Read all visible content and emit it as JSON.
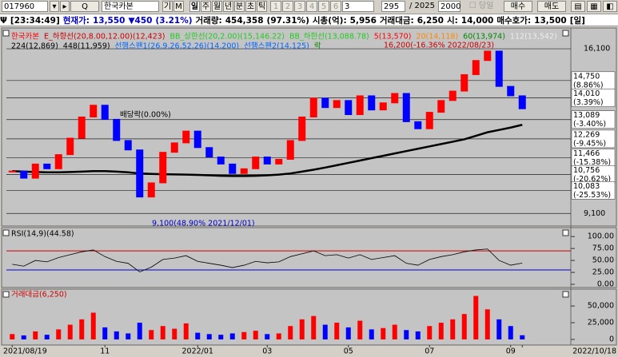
{
  "toolbar": {
    "code": "017960",
    "name": "한국카본",
    "buttons": [
      "기",
      "M",
      "일",
      "주",
      "월",
      "년",
      "분",
      "초",
      "틱"
    ],
    "numbers": [
      "1",
      "2",
      "3",
      "4",
      "5",
      "6"
    ],
    "period": "3",
    "count": "295",
    "total": "/ 2025",
    "max": "2000",
    "today": "당일",
    "buy": "매수",
    "sell": "매도"
  },
  "info": [
    {
      "text": "[23:34:49]",
      "color": "#000000"
    },
    {
      "text": "현재가:",
      "color": "#0000cc"
    },
    {
      "text": "13,550",
      "color": "#0000cc"
    },
    {
      "text": "▼450",
      "color": "#0000cc"
    },
    {
      "text": "(3.21%)",
      "color": "#0000cc"
    },
    {
      "text": "거래량:",
      "color": "#000000"
    },
    {
      "text": "454,358",
      "color": "#000000"
    },
    {
      "text": "(97.31%)",
      "color": "#000000"
    },
    {
      "text": "시총(억):",
      "color": "#000000"
    },
    {
      "text": "5,956",
      "color": "#000000"
    },
    {
      "text": "거래대금:",
      "color": "#000000"
    },
    {
      "text": "6,250",
      "color": "#000000"
    },
    {
      "text": "시:",
      "color": "#000000"
    },
    {
      "text": "14,000",
      "color": "#000000"
    },
    {
      "text": "매수호가:",
      "color": "#000000"
    },
    {
      "text": "13,500",
      "color": "#000000"
    },
    {
      "text": "[일]",
      "color": "#000000"
    }
  ],
  "chart_data": [
    {
      "type": "candlestick",
      "color_up": "#ff0000",
      "color_down": "#0000ff",
      "legend": [
        [
          {
            "text": "한국카본",
            "color": "#ff0000"
          },
          {
            "text": "E_하향선(20,8.00,12.00)(12,423)",
            "color": "#cc0000"
          },
          {
            "text": "BB_상한선(20,2.00)(15,146.22)",
            "color": "#22cc22"
          },
          {
            "text": "BB_하한선(13,088.78)",
            "color": "#22cc22"
          },
          {
            "text": "5(13,570)",
            "color": "#ff0000"
          },
          {
            "text": "20(14,118)",
            "color": "#ff8800"
          },
          {
            "text": "60(13,974)",
            "color": "#008800"
          },
          {
            "text": "112(13,542)",
            "color": "#eeeeee"
          }
        ],
        [
          {
            "text": "224(12,869)",
            "color": "#000000"
          },
          {
            "text": "448(11,959)",
            "color": "#000000"
          },
          {
            "text": "선행스팬1(26,9,26,52,26)(14,200)",
            "color": "#0066ff"
          },
          {
            "text": "선행스팬2(14,125)",
            "color": "#0066ff"
          },
          {
            "text": "락",
            "color": "#008800"
          }
        ]
      ],
      "annotations": [
        {
          "text": "16,200(-16.36% 2022/08/23)",
          "color": "#cc0000"
        },
        {
          "text": "배당락(0.00%)",
          "color": "#000000"
        },
        {
          "text": "9,100(48.90% 2021/12/01)",
          "color": "#0000cc"
        }
      ],
      "values": [
        10900,
        10600,
        11200,
        11000,
        11600,
        12300,
        13200,
        13700,
        13100,
        12200,
        11800,
        9800,
        10400,
        11700,
        12100,
        12600,
        11900,
        11500,
        11200,
        10800,
        11000,
        11500,
        11200,
        11400,
        12200,
        13200,
        14000,
        13600,
        13900,
        13300,
        14100,
        13500,
        13800,
        14200,
        13000,
        12700,
        13400,
        13900,
        14300,
        15000,
        15600,
        16000,
        14500,
        14100,
        13550
      ],
      "ma224": {
        "color": "#000000",
        "values": [
          10900,
          10880,
          10860,
          10850,
          10850,
          10860,
          10880,
          10900,
          10900,
          10880,
          10850,
          10800,
          10780,
          10770,
          10760,
          10750,
          10740,
          10720,
          10700,
          10690,
          10690,
          10700,
          10720,
          10750,
          10800,
          10880,
          10960,
          11050,
          11150,
          11250,
          11350,
          11450,
          11550,
          11650,
          11750,
          11850,
          11950,
          12050,
          12150,
          12250,
          12400,
          12550,
          12650,
          12750,
          12869
        ]
      },
      "ylim": [
        8600,
        16950
      ],
      "yticks": [
        {
          "value": 16100,
          "label": "16,100"
        },
        {
          "value": 14750,
          "label": "14,750",
          "pct": "(8.86%)"
        },
        {
          "value": 14010,
          "label": "14,010",
          "pct": "(3.39%)"
        },
        {
          "value": 13089,
          "label": "13,089",
          "pct": "(-3.40%)"
        },
        {
          "value": 12269,
          "label": "12,269",
          "pct": "(-9.45%)"
        },
        {
          "value": 11466,
          "label": "11,466",
          "pct": "(-15.38%)"
        },
        {
          "value": 10756,
          "label": "10,756",
          "pct": "(-20.62%)"
        },
        {
          "value": 10083,
          "label": "10,083",
          "pct": "(-25.53%)"
        },
        {
          "value": 9100,
          "label": "9,100"
        }
      ],
      "grid": true
    },
    {
      "type": "line",
      "title": "RSI(14,9)(44.58)",
      "color": "#000000",
      "values": [
        42,
        38,
        50,
        47,
        56,
        62,
        68,
        72,
        58,
        48,
        44,
        26,
        36,
        52,
        55,
        60,
        48,
        44,
        40,
        35,
        40,
        48,
        45,
        47,
        58,
        64,
        70,
        60,
        62,
        55,
        62,
        52,
        56,
        60,
        44,
        40,
        52,
        58,
        62,
        68,
        72,
        74,
        50,
        40,
        44.58
      ],
      "levels": [
        {
          "value": 70,
          "color": "#cc0000"
        },
        {
          "value": 30,
          "color": "#0000cc"
        }
      ],
      "ylim": [
        -5,
        117
      ],
      "yticks": [
        {
          "value": 100,
          "label": "100.00"
        },
        {
          "value": 75,
          "label": "75.00"
        },
        {
          "value": 50,
          "label": "50.00"
        },
        {
          "value": 25,
          "label": "25.00"
        },
        {
          "value": 0,
          "label": "0.00"
        }
      ]
    },
    {
      "type": "bar",
      "title": "거래대금(6,250)",
      "categories": [
        "2021/08/19",
        null,
        null,
        null,
        null,
        null,
        null,
        null,
        "11",
        null,
        null,
        null,
        null,
        null,
        null,
        null,
        "2022/01",
        null,
        null,
        null,
        null,
        null,
        "03",
        null,
        null,
        null,
        null,
        null,
        null,
        "05",
        null,
        null,
        null,
        null,
        null,
        null,
        "07",
        null,
        null,
        null,
        null,
        null,
        null,
        "09",
        "2022/10/18"
      ],
      "values": [
        8000,
        6000,
        12000,
        7000,
        15000,
        22000,
        30000,
        40000,
        18000,
        12000,
        9000,
        25000,
        14000,
        20000,
        16000,
        24000,
        10000,
        8000,
        7000,
        9000,
        11000,
        13000,
        8000,
        9000,
        20000,
        30000,
        35000,
        22000,
        25000,
        18000,
        28000,
        15000,
        17000,
        22000,
        14000,
        12000,
        20000,
        25000,
        30000,
        38000,
        65000,
        45000,
        30000,
        20000,
        6250
      ],
      "ylim": [
        0,
        74000
      ],
      "yticks": [
        {
          "value": 50000,
          "label": "50,000"
        },
        {
          "value": 25000,
          "label": "25,000"
        },
        0
      ]
    }
  ]
}
